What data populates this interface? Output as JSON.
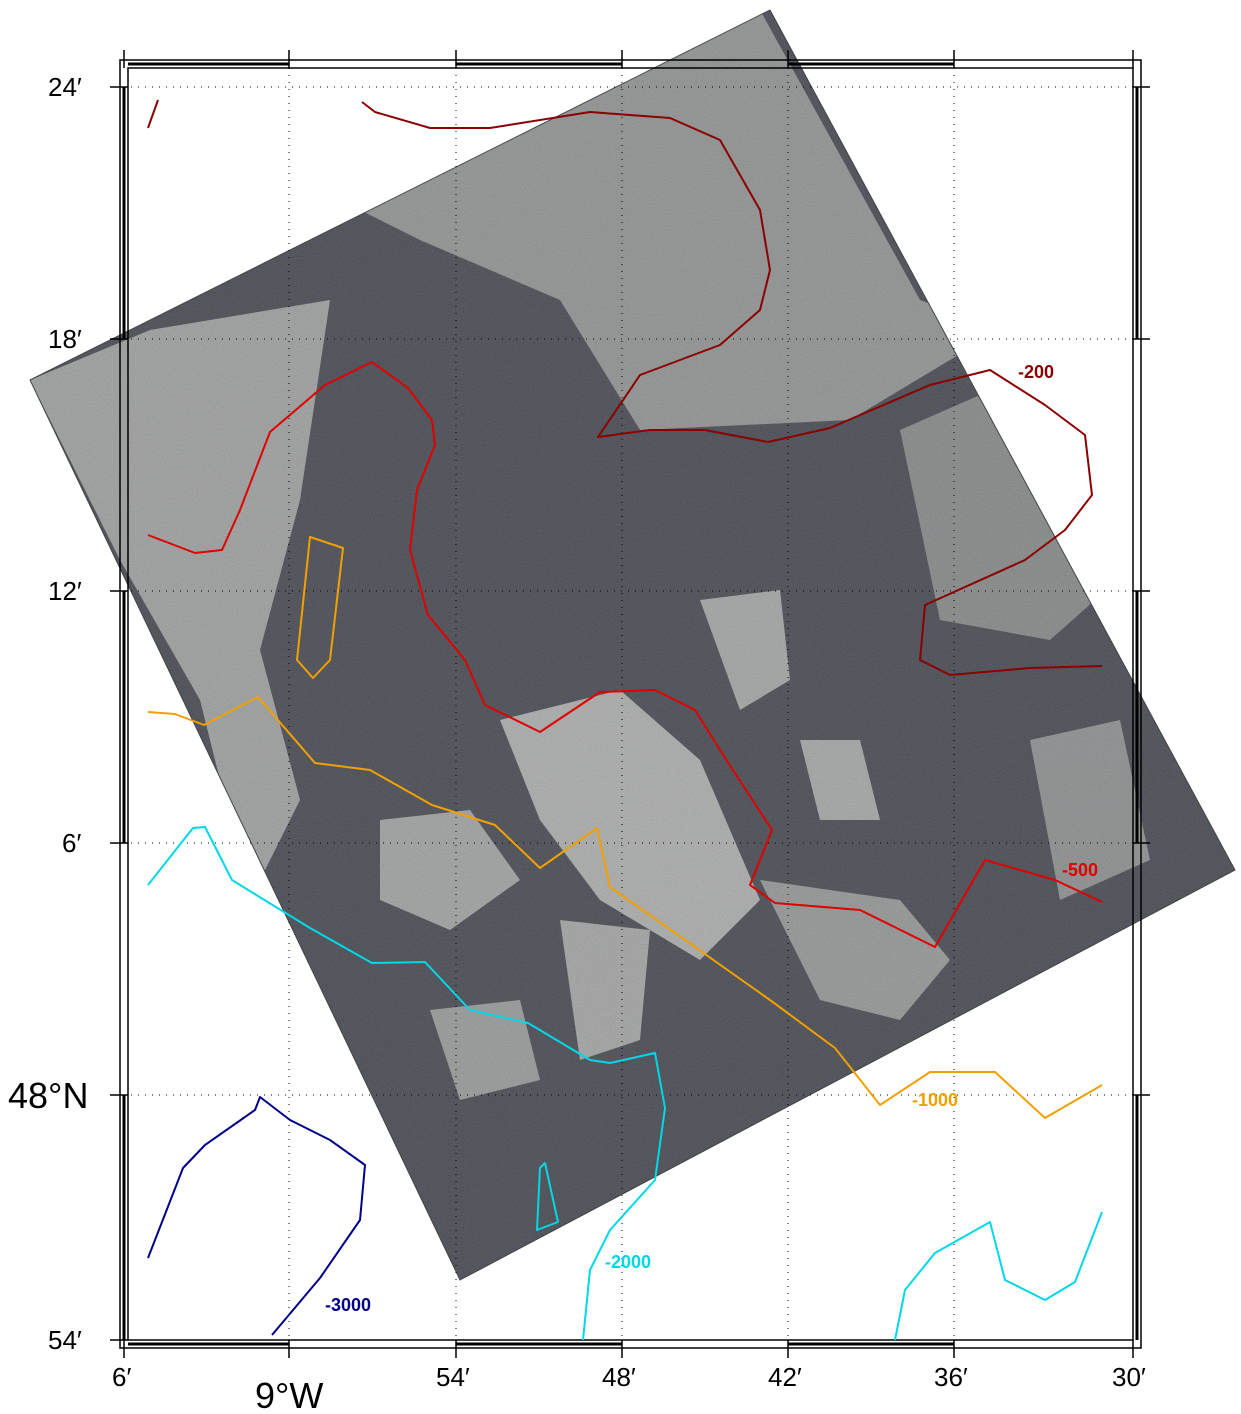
{
  "map": {
    "latitude_ticks": [
      "24′",
      "18′",
      "12′",
      "6′",
      "48°N",
      "54′"
    ],
    "longitude_ticks": [
      "6′",
      "9°W",
      "54′",
      "48′",
      "42′",
      "36′",
      "30′"
    ],
    "contours": [
      {
        "label": "-200",
        "color": "#8b0000"
      },
      {
        "label": "-500",
        "color": "#e00000"
      },
      {
        "label": "-1000",
        "color": "#f0a000"
      },
      {
        "label": "-2000",
        "color": "#00d8e8"
      },
      {
        "label": "-3000",
        "color": "#00008b"
      }
    ],
    "image_overlay": "satellite-sar-image"
  }
}
